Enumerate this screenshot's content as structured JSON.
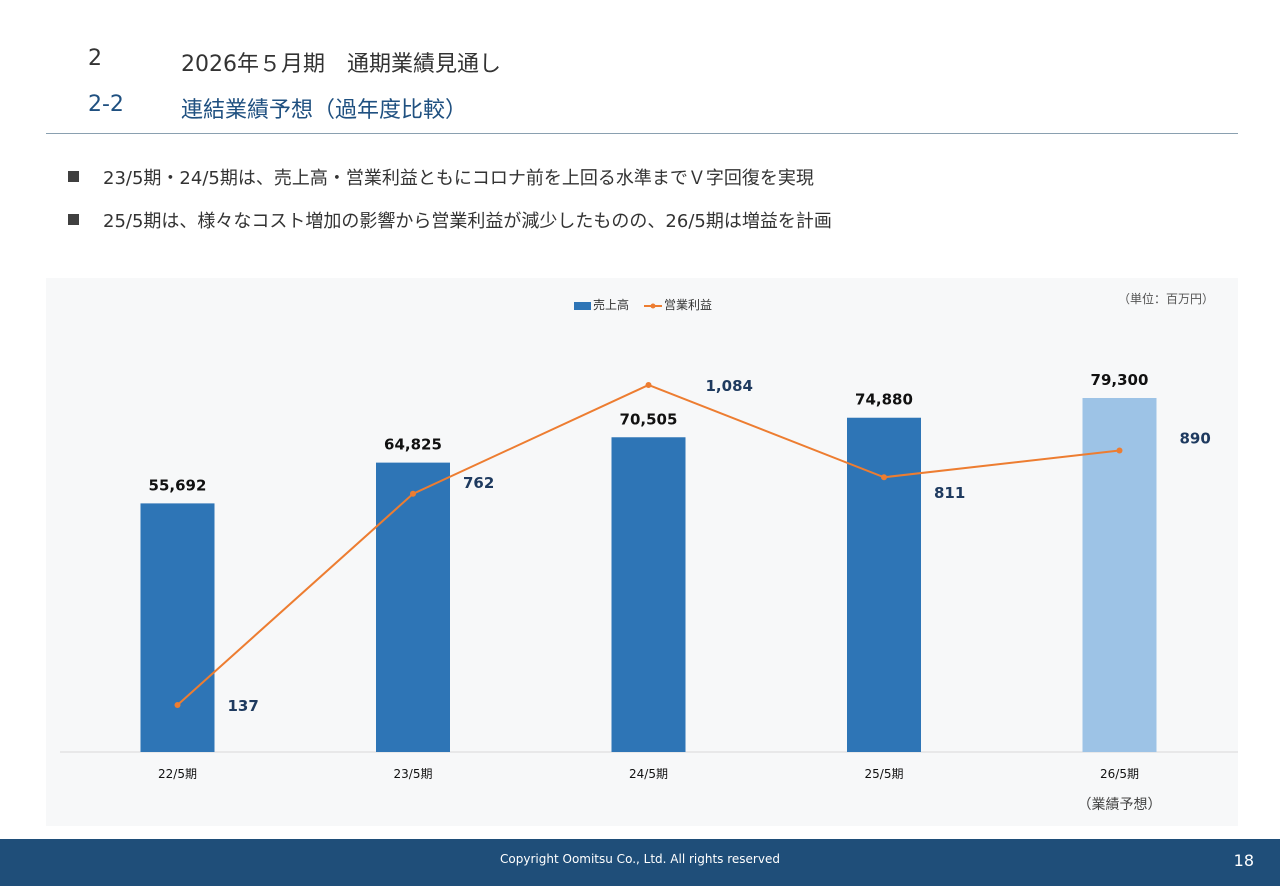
{
  "header": {
    "section_num": "2",
    "section_title": "2026年５月期　通期業績見通し",
    "subsection_num": "2-2",
    "subsection_title": "連結業績予想（過年度比較）"
  },
  "bullets": [
    "23/5期・24/5期は、売上高・営業利益ともにコロナ前を上回る水準までＶ字回復を実現",
    "25/5期は、様々なコスト増加の影響から営業利益が減少したものの、26/5期は増益を計画"
  ],
  "chart_data": {
    "type": "bar",
    "unit_note": "（単位：百万円）",
    "categories": [
      "22/5期",
      "23/5期",
      "24/5期",
      "25/5期",
      "26/5期"
    ],
    "category_sub": [
      "",
      "",
      "",
      "",
      "（業績予想）"
    ],
    "series": [
      {
        "name": "売上高",
        "type": "bar",
        "values": [
          55692,
          64825,
          70505,
          74880,
          79300
        ],
        "labels": [
          "55,692",
          "64,825",
          "70,505",
          "74,880",
          "79,300"
        ],
        "color": "#2e75b6",
        "forecast_color": "#9dc3e6",
        "forecast_index": 4
      },
      {
        "name": "営業利益",
        "type": "line",
        "values": [
          137,
          762,
          1084,
          811,
          890
        ],
        "labels": [
          "137",
          "762",
          "1,084",
          "811",
          "890"
        ],
        "color": "#ed7d31"
      }
    ],
    "legend_position": "top-center",
    "grid": false
  },
  "footer": {
    "copyright": "Copyright Oomitsu Co., Ltd. All rights reserved",
    "page": "18"
  }
}
